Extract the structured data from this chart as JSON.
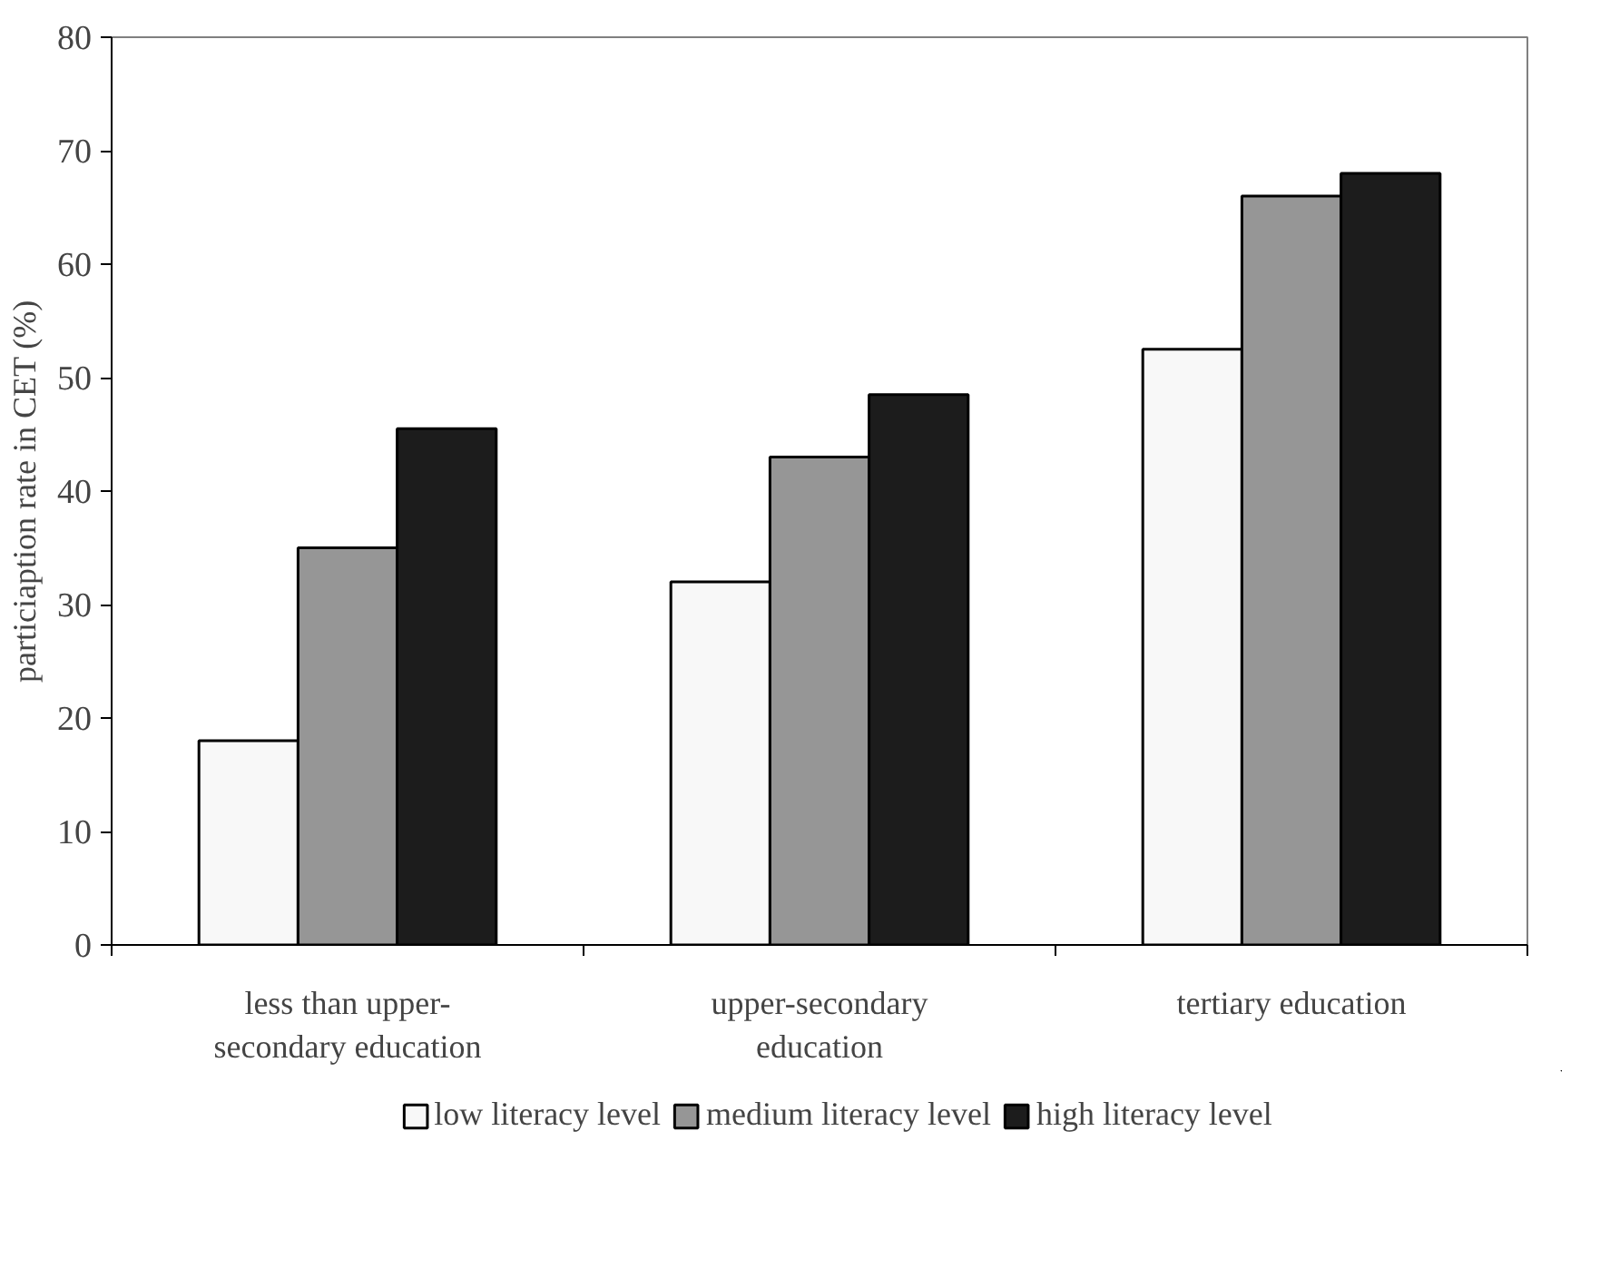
{
  "chart_data": {
    "type": "bar",
    "ylabel": "particiaption rate in CET (%)",
    "categories": [
      "less than upper-secondary education",
      "upper-secondary education",
      "tertiary education"
    ],
    "series": [
      {
        "name": "low literacy level",
        "color": "#f8f8f8",
        "values": [
          18,
          32,
          52.5
        ]
      },
      {
        "name": "medium literacy level",
        "color": "#969696",
        "values": [
          35,
          43,
          66
        ]
      },
      {
        "name": "high literacy level",
        "color": "#1c1c1c",
        "values": [
          45.5,
          48.5,
          68
        ]
      }
    ],
    "ylim": [
      0,
      80
    ],
    "yticks": [
      0,
      10,
      20,
      30,
      40,
      50,
      60,
      70,
      80
    ],
    "grid": false,
    "legend": "bottom"
  }
}
